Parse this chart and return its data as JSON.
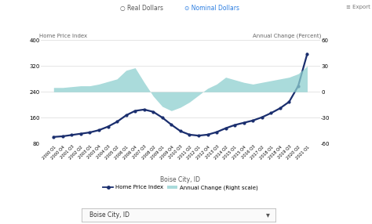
{
  "ylabel_left": "Home Price Index",
  "ylabel_right": "Annual Change (Percent)",
  "xlabel": "Boise City, ID",
  "export_label": "≡ Export",
  "left_ylim": [
    80,
    400
  ],
  "right_ylim": [
    -60,
    60
  ],
  "left_yticks": [
    80,
    160,
    240,
    320,
    400
  ],
  "right_yticks": [
    -60,
    -30,
    0,
    30,
    60
  ],
  "bg_color": "#ffffff",
  "grid_color": "#e0e0e0",
  "line_color": "#1a2e6e",
  "fill_color": "#8ecfcf",
  "dropdown_label": "Boise City, ID",
  "legend_line_label": "Home Price Index",
  "legend_fill_label": "Annual Change (Right scale)",
  "quarters": [
    "2000 Q1",
    "2000 Q4",
    "2001 Q3",
    "2002 Q2",
    "2003 Q1",
    "2003 Q4",
    "2004 Q3",
    "2005 Q2",
    "2006 Q1",
    "2006 Q4",
    "2007 Q3",
    "2008 Q2",
    "2009 Q1",
    "2009 Q4",
    "2010 Q3",
    "2011 Q2",
    "2012 Q1",
    "2012 Q4",
    "2013 Q3",
    "2014 Q2",
    "2015 Q1",
    "2015 Q4",
    "2016 Q3",
    "2017 Q2",
    "2018 Q1",
    "2018 Q4",
    "2019 Q3",
    "2020 Q2",
    "2021 Q1"
  ],
  "hpi_values": [
    100,
    102,
    106,
    110,
    114,
    121,
    132,
    147,
    167,
    181,
    185,
    178,
    160,
    138,
    118,
    107,
    104,
    107,
    115,
    127,
    137,
    144,
    151,
    161,
    174,
    189,
    209,
    258,
    358
  ],
  "annual_change": [
    5,
    5,
    6,
    7,
    7,
    9,
    12,
    15,
    25,
    28,
    11,
    -5,
    -17,
    -22,
    -18,
    -12,
    -4,
    4,
    9,
    17,
    14,
    11,
    9,
    11,
    13,
    15,
    17,
    21,
    30
  ]
}
